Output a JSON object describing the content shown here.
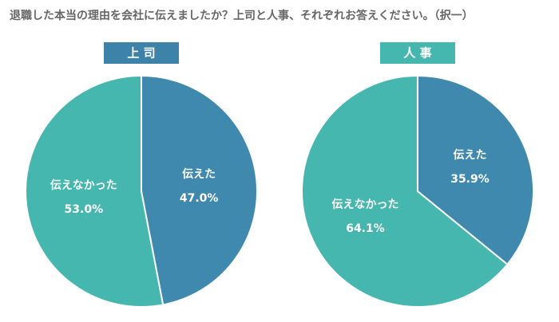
{
  "title": "退職した本当の理由を会社に伝えましたか？上司と人事、それぞれお答えください。（択一）",
  "chart_data": [
    {
      "type": "pie",
      "title": "上 司",
      "title_color": "#3d82a8",
      "categories": [
        "伝えた",
        "伝えなかった"
      ],
      "values": [
        47.0,
        53.0
      ],
      "value_labels": [
        "47.0%",
        "53.0%"
      ],
      "colors": [
        "#3f89ae",
        "#45b7ae"
      ]
    },
    {
      "type": "pie",
      "title": "人 事",
      "title_color": "#45b7ae",
      "categories": [
        "伝えた",
        "伝えなかった"
      ],
      "values": [
        35.9,
        64.1
      ],
      "value_labels": [
        "35.9%",
        "64.1%"
      ],
      "colors": [
        "#3f89ae",
        "#45b7ae"
      ]
    }
  ]
}
